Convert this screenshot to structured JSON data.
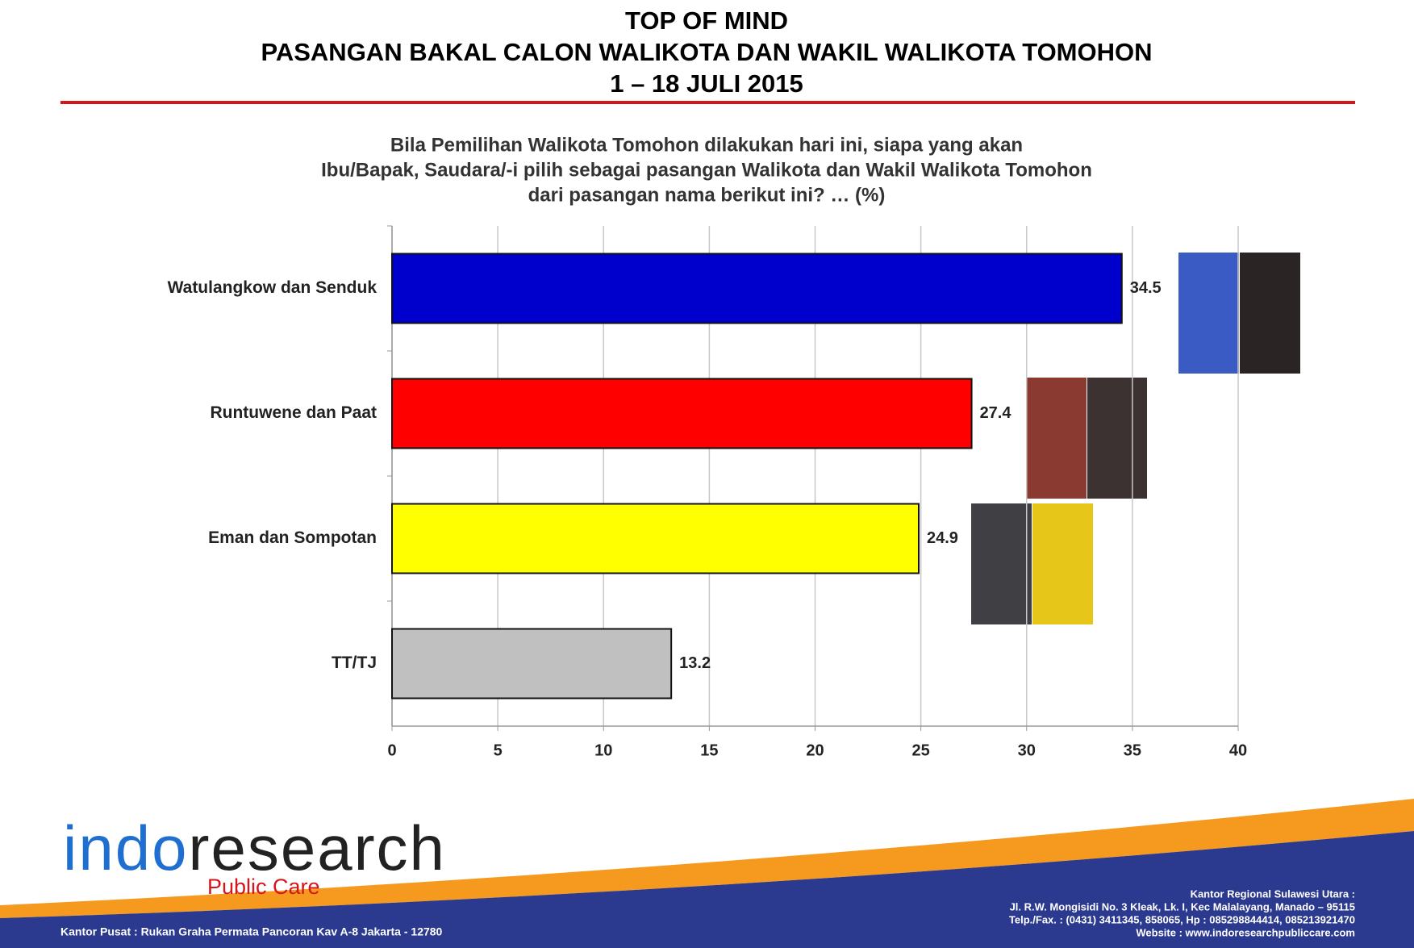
{
  "chart_data": {
    "type": "bar",
    "orientation": "horizontal",
    "title": [
      "TOP OF MIND",
      "PASANGAN BAKAL CALON WALIKOTA DAN WAKIL WALIKOTA TOMOHON",
      "1 – 18 JULI 2015"
    ],
    "subtitle": [
      "Bila Pemilihan Walikota Tomohon dilakukan hari ini, siapa yang akan",
      "Ibu/Bapak, Saudara/-i pilih sebagai pasangan Walikota dan Wakil Walikota Tomohon",
      "dari pasangan nama berikut ini? … (%)"
    ],
    "categories": [
      "Watulangkow dan Senduk",
      "Runtuwene dan Paat",
      "Eman dan Sompotan",
      "TT/TJ"
    ],
    "values": [
      34.5,
      27.4,
      24.9,
      13.2
    ],
    "colors": [
      "#0000cc",
      "#ff0000",
      "#ffff00",
      "#c0c0c0"
    ],
    "xlim": [
      0,
      40
    ],
    "xticks": [
      0,
      5,
      10,
      15,
      20,
      25,
      30,
      35,
      40
    ],
    "grid": true
  },
  "footer": {
    "logo": [
      "indo",
      "research"
    ],
    "tagline": "Public Care",
    "head_office": "Kantor Pusat : Rukan Graha Permata Pancoran Kav A-8 Jakarta - 12780",
    "regional_office": [
      "Kantor Regional Sulawesi Utara :",
      "Jl. R.W. Mongisidi No. 3 Kleak, Lk. I, Kec Malalayang, Manado – 95115",
      "Telp./Fax. : (0431) 3411345, 858065, Hp : 085298844414, 085213921470",
      "Website : www.indoresearchpubliccare.com"
    ]
  }
}
